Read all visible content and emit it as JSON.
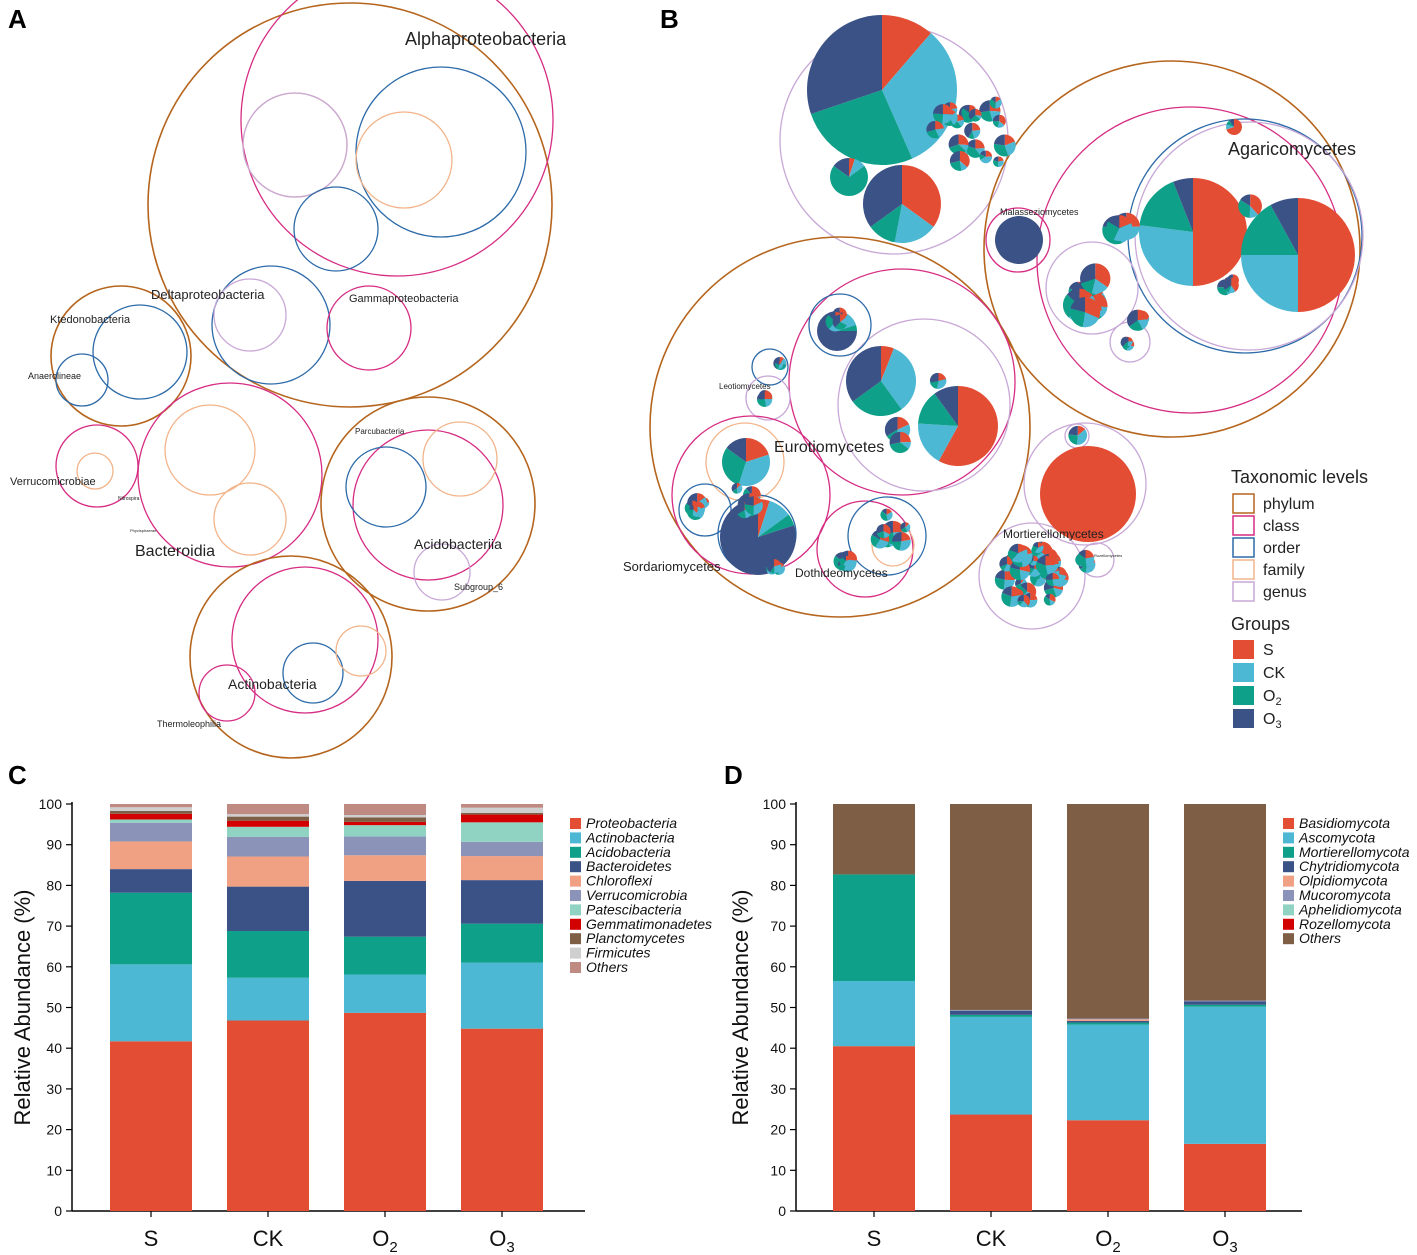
{
  "colors": {
    "S": "#e34d34",
    "CK": "#4cb8d4",
    "O2": "#0fa08a",
    "O3": "#3b5287",
    "phylum": "#b5651d",
    "class": "#d62c83",
    "order": "#2c6aa8",
    "family": "#f2b48a",
    "genus": "#c8a8d6"
  },
  "panels": {
    "A": "A",
    "B": "B",
    "C": "C",
    "D": "D"
  },
  "packA": {
    "labels": [
      "Alphaproteobacteria",
      "Deltaproteobacteria",
      "Gammaproteobacteria",
      "Ktedonobacteria",
      "Anaerolineae",
      "Verrucomicrobiae",
      "Bacteroidia",
      "Parcubacteria",
      "Acidobacteriia",
      "Subgroup_6",
      "Actinobacteria",
      "Thermoleophilia",
      "Nitrospira",
      "Phycisphaerae"
    ]
  },
  "packB": {
    "labels": [
      "Agaricomycetes",
      "Malasseziomycetes",
      "Leotiomycetes",
      "Eurotiomycetes",
      "Sordariomycetes",
      "Dothideomycetes",
      "Mortierellomycetes",
      "Rozellomycetes"
    ]
  },
  "legend": {
    "levels_title": "Taxonomic levels",
    "levels": [
      "phylum",
      "class",
      "order",
      "family",
      "genus"
    ],
    "groups_title": "Groups",
    "groups": [
      {
        "key": "S",
        "label": "S"
      },
      {
        "key": "CK",
        "label": "CK"
      },
      {
        "key": "O2",
        "label": "O",
        "sub": "2"
      },
      {
        "key": "O3",
        "label": "O",
        "sub": "3"
      }
    ]
  },
  "chart_data": [
    {
      "type": "bar",
      "panel": "C",
      "ylabel": "Relative Abundance (%)",
      "ylim": [
        0,
        100
      ],
      "yticks": [
        "0",
        "10",
        "20",
        "30",
        "40",
        "50",
        "60",
        "70",
        "80",
        "90",
        "100"
      ],
      "categories": [
        {
          "label": "S"
        },
        {
          "label": "CK"
        },
        {
          "label": "O",
          "sub": "2"
        },
        {
          "label": "O",
          "sub": "3"
        }
      ],
      "legend_position": "top-right",
      "series": [
        {
          "name": "Proteobacteria",
          "color": "#e34d34",
          "values": [
            41.7,
            46.8,
            48.7,
            44.8
          ]
        },
        {
          "name": "Actinobacteria",
          "color": "#4cb8d4",
          "values": [
            18.9,
            10.5,
            9.4,
            16.2
          ]
        },
        {
          "name": "Acidobacteria",
          "color": "#0fa08a",
          "values": [
            17.6,
            11.5,
            9.3,
            9.6
          ]
        },
        {
          "name": "Bacteroidetes",
          "color": "#3b5287",
          "values": [
            5.8,
            10.9,
            13.7,
            10.7
          ]
        },
        {
          "name": "Chloroflexi",
          "color": "#f0a083",
          "values": [
            6.8,
            7.4,
            6.3,
            5.9
          ]
        },
        {
          "name": "Verrucomicrobia",
          "color": "#8b94b8",
          "values": [
            4.6,
            4.8,
            4.6,
            3.5
          ]
        },
        {
          "name": "Patescibacteria",
          "color": "#91d3c3",
          "values": [
            0.8,
            2.5,
            2.8,
            4.8
          ]
        },
        {
          "name": "Gemmatimonadetes",
          "color": "#d20000",
          "values": [
            1.4,
            1.5,
            0.8,
            1.9
          ]
        },
        {
          "name": "Planctomycetes",
          "color": "#7e5e45",
          "values": [
            0.7,
            1.0,
            1.1,
            0.4
          ]
        },
        {
          "name": "Firmicutes",
          "color": "#cfcfcf",
          "values": [
            0.9,
            0.6,
            0.6,
            1.3
          ]
        },
        {
          "name": "Others",
          "color": "#be8a82",
          "values": [
            0.8,
            2.5,
            2.7,
            0.9
          ]
        }
      ]
    },
    {
      "type": "bar",
      "panel": "D",
      "ylabel": "Relative Abundance (%)",
      "ylim": [
        0,
        100
      ],
      "yticks": [
        "0",
        "10",
        "20",
        "30",
        "40",
        "50",
        "60",
        "70",
        "80",
        "90",
        "100"
      ],
      "categories": [
        {
          "label": "S"
        },
        {
          "label": "CK"
        },
        {
          "label": "O",
          "sub": "2"
        },
        {
          "label": "O",
          "sub": "3"
        }
      ],
      "legend_position": "top-right",
      "series": [
        {
          "name": "Basidiomycota",
          "color": "#e34d34",
          "values": [
            40.5,
            23.7,
            22.3,
            16.5
          ]
        },
        {
          "name": "Ascomycota",
          "color": "#4cb8d4",
          "values": [
            16.0,
            24.0,
            23.5,
            33.7
          ]
        },
        {
          "name": "Mortierellomycota",
          "color": "#0fa08a",
          "values": [
            26.2,
            0.5,
            0.5,
            0.5
          ]
        },
        {
          "name": "Chytridiomycota",
          "color": "#3b5287",
          "values": [
            0.0,
            1.0,
            0.4,
            0.8
          ]
        },
        {
          "name": "Olpidiomycota",
          "color": "#f0a083",
          "values": [
            0.0,
            0.0,
            0.4,
            0.0
          ]
        },
        {
          "name": "Mucoromycota",
          "color": "#8b94b8",
          "values": [
            0.0,
            0.2,
            0.2,
            0.2
          ]
        },
        {
          "name": "Aphelidiomycota",
          "color": "#91d3c3",
          "values": [
            0.0,
            0.0,
            0.0,
            0.0
          ]
        },
        {
          "name": "Rozellomycota",
          "color": "#d20000",
          "values": [
            0.0,
            0.0,
            0.0,
            0.0
          ]
        },
        {
          "name": "Others",
          "color": "#7e5e45",
          "values": [
            17.3,
            50.6,
            52.7,
            48.3
          ]
        }
      ]
    }
  ]
}
